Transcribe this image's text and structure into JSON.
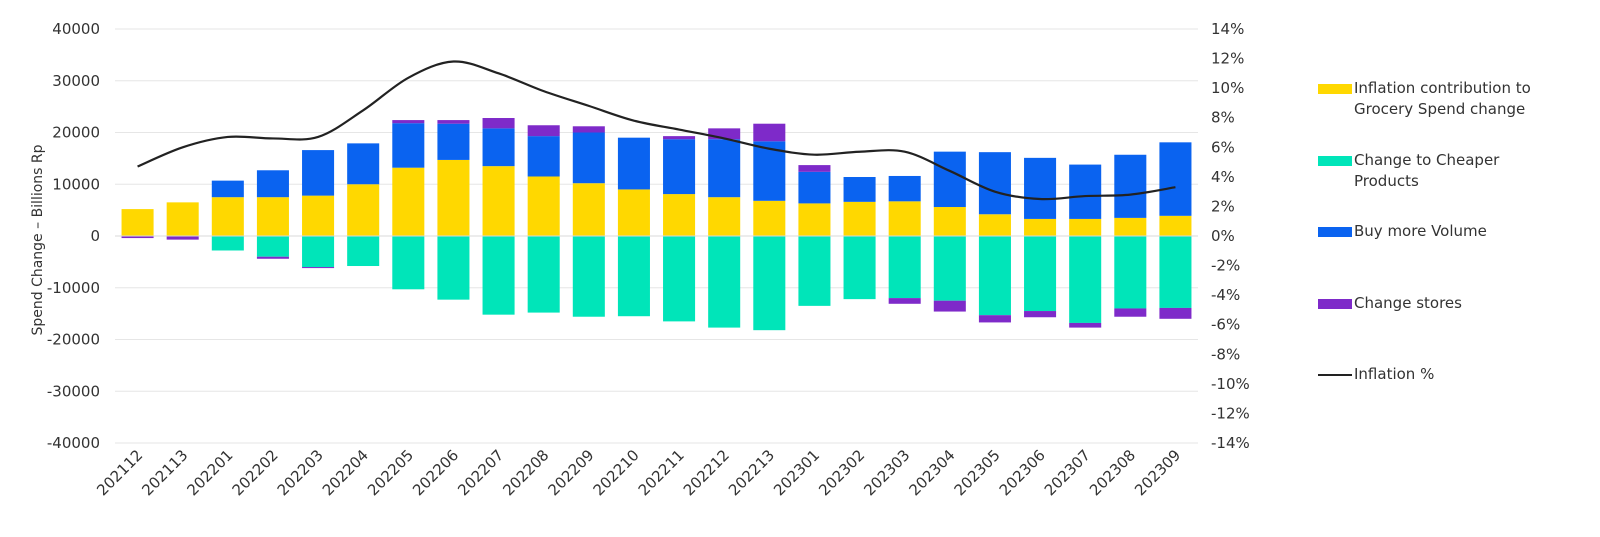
{
  "chart_data": {
    "type": "bar",
    "stacked": true,
    "categories": [
      "202112",
      "202113",
      "202201",
      "202202",
      "202203",
      "202204",
      "202205",
      "202206",
      "202207",
      "202208",
      "202209",
      "202210",
      "202211",
      "202212",
      "202213",
      "202301",
      "202302",
      "202303",
      "202304",
      "202305",
      "202306",
      "202307",
      "202308",
      "202309"
    ],
    "ylabel": "Spend Change – Billions Rp",
    "ylim": [
      -40000,
      40000
    ],
    "yticks": [
      40000,
      30000,
      20000,
      10000,
      0,
      -10000,
      -20000,
      -30000,
      -40000
    ],
    "y2lim": [
      -14,
      14
    ],
    "y2ticks": [
      "14%",
      "12%",
      "10%",
      "8%",
      "6%",
      "4%",
      "2%",
      "0%",
      "-2%",
      "-4%",
      "-6%",
      "-8%",
      "-10%",
      "-12%",
      "-14%"
    ],
    "grid": true,
    "legend_position": "right",
    "series": [
      {
        "name": "Inflation contribution to Grocery Spend change",
        "color": "#FFD800",
        "values": [
          5200,
          6500,
          7500,
          7500,
          7800,
          10000,
          13200,
          14700,
          13500,
          11500,
          10200,
          9000,
          8100,
          7500,
          6800,
          6300,
          6600,
          6700,
          5600,
          4200,
          3300,
          3300,
          3500,
          3900
        ]
      },
      {
        "name": "Change to Cheaper Products",
        "color": "#00E5B9",
        "values": [
          0,
          0,
          -2800,
          -4000,
          -6000,
          -5800,
          -10300,
          -12300,
          -15200,
          -14800,
          -15600,
          -15500,
          -16500,
          -17700,
          -18200,
          -13500,
          -12200,
          -12000,
          -12500,
          -15300,
          -14500,
          -16800,
          -14000,
          -13900
        ]
      },
      {
        "name": "Buy more Volume",
        "color": "#0A63F0",
        "values": [
          0,
          0,
          3200,
          5200,
          8800,
          7900,
          8600,
          7000,
          7300,
          7800,
          9800,
          10000,
          10600,
          11200,
          11500,
          6100,
          4800,
          4900,
          10700,
          12000,
          11800,
          10500,
          12200,
          14200
        ]
      },
      {
        "name": "Change stores",
        "color": "#7E2AC9",
        "values": [
          -400,
          -700,
          0,
          -400,
          -200,
          0,
          600,
          700,
          2000,
          2100,
          1200,
          0,
          600,
          2100,
          3400,
          1300,
          0,
          -1100,
          -2100,
          -1400,
          -1200,
          -900,
          -1600,
          -2100
        ]
      },
      {
        "name": "Inflation %",
        "type": "line",
        "color": "#222222",
        "values": [
          4.7,
          6.0,
          6.7,
          6.6,
          6.7,
          8.5,
          10.7,
          11.8,
          11.0,
          9.8,
          8.8,
          7.8,
          7.2,
          6.6,
          5.9,
          5.5,
          5.7,
          5.7,
          4.4,
          3.0,
          2.5,
          2.7,
          2.8,
          3.3
        ]
      }
    ]
  }
}
